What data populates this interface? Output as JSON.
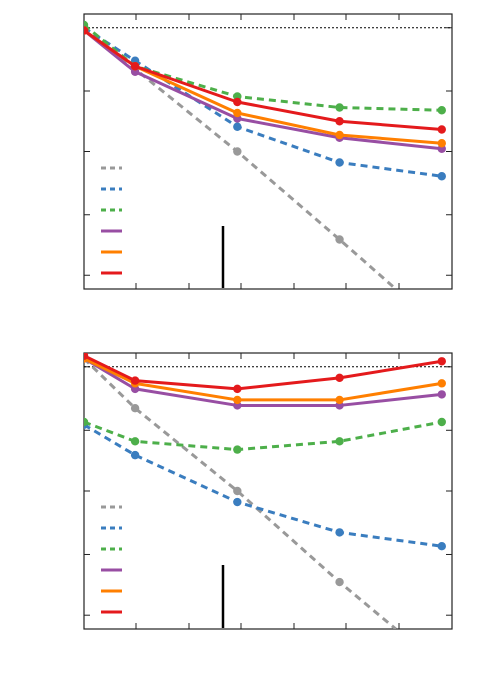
{
  "chart_data": [
    {
      "type": "line",
      "x": [
        0,
        1,
        3,
        5,
        7
      ],
      "xlim": [
        0,
        7.2
      ],
      "ylim": [
        0,
        1
      ],
      "reference_line_y": 0.95,
      "marker_bar_x": 2.7,
      "series": [
        {
          "color": "#999999",
          "dashed": true,
          "points": [
            [
              0,
              0.95
            ],
            [
              1,
              0.8
            ],
            [
              3,
              0.5
            ],
            [
              5,
              0.18
            ],
            [
              6.1,
              0
            ]
          ]
        },
        {
          "color": "#3a7dbf",
          "dashed": true,
          "points": [
            [
              0,
              0.95
            ],
            [
              1,
              0.83
            ],
            [
              3,
              0.59
            ],
            [
              5,
              0.46
            ],
            [
              7,
              0.41
            ]
          ]
        },
        {
          "color": "#4daf4a",
          "dashed": true,
          "points": [
            [
              0,
              0.96
            ],
            [
              1,
              0.81
            ],
            [
              3,
              0.7
            ],
            [
              5,
              0.66
            ],
            [
              7,
              0.65
            ]
          ]
        },
        {
          "color": "#984ea3",
          "dashed": false,
          "points": [
            [
              0,
              0.94
            ],
            [
              1,
              0.79
            ],
            [
              3,
              0.62
            ],
            [
              5,
              0.55
            ],
            [
              7,
              0.51
            ]
          ]
        },
        {
          "color": "#ff7f00",
          "dashed": false,
          "points": [
            [
              0,
              0.94
            ],
            [
              1,
              0.81
            ],
            [
              3,
              0.64
            ],
            [
              5,
              0.56
            ],
            [
              7,
              0.53
            ]
          ]
        },
        {
          "color": "#e41a1c",
          "dashed": false,
          "points": [
            [
              0,
              0.94
            ],
            [
              1,
              0.81
            ],
            [
              3,
              0.68
            ],
            [
              5,
              0.61
            ],
            [
              7,
              0.58
            ]
          ]
        }
      ]
    },
    {
      "type": "line",
      "x": [
        0,
        1,
        3,
        5,
        7
      ],
      "xlim": [
        0,
        7.2
      ],
      "ylim": [
        0,
        1
      ],
      "reference_line_y": 0.95,
      "marker_bar_x": 2.7,
      "series": [
        {
          "color": "#999999",
          "dashed": true,
          "points": [
            [
              0,
              0.98
            ],
            [
              1,
              0.8
            ],
            [
              3,
              0.5
            ],
            [
              5,
              0.17
            ],
            [
              6.1,
              0
            ]
          ]
        },
        {
          "color": "#3a7dbf",
          "dashed": true,
          "points": [
            [
              0,
              0.74
            ],
            [
              1,
              0.63
            ],
            [
              3,
              0.46
            ],
            [
              5,
              0.35
            ],
            [
              7,
              0.3
            ]
          ]
        },
        {
          "color": "#4daf4a",
          "dashed": true,
          "points": [
            [
              0,
              0.75
            ],
            [
              1,
              0.68
            ],
            [
              3,
              0.65
            ],
            [
              5,
              0.68
            ],
            [
              7,
              0.75
            ]
          ]
        },
        {
          "color": "#984ea3",
          "dashed": false,
          "points": [
            [
              0,
              0.98
            ],
            [
              1,
              0.87
            ],
            [
              3,
              0.81
            ],
            [
              5,
              0.81
            ],
            [
              7,
              0.85
            ]
          ]
        },
        {
          "color": "#ff7f00",
          "dashed": false,
          "points": [
            [
              0,
              0.98
            ],
            [
              1,
              0.89
            ],
            [
              3,
              0.83
            ],
            [
              5,
              0.83
            ],
            [
              7,
              0.89
            ]
          ]
        },
        {
          "color": "#e41a1c",
          "dashed": false,
          "points": [
            [
              0,
              0.99
            ],
            [
              1,
              0.9
            ],
            [
              3,
              0.87
            ],
            [
              5,
              0.91
            ],
            [
              7,
              0.97
            ]
          ]
        }
      ]
    }
  ]
}
